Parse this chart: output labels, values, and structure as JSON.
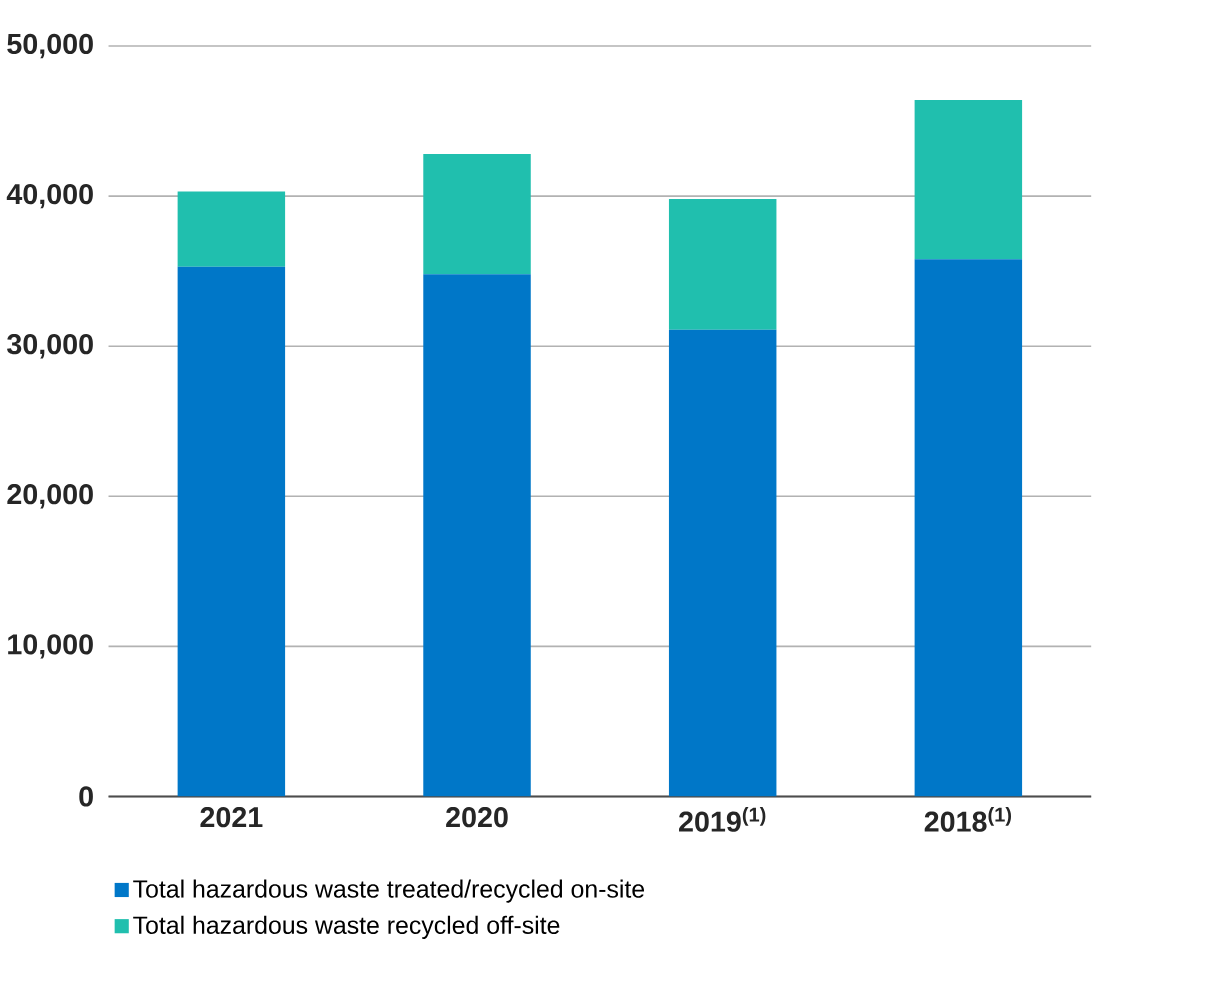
{
  "chart_data": {
    "type": "bar",
    "stacked": true,
    "categories": [
      "2021",
      "2020",
      "2019$^{(1)}$",
      "2018$^{(1)}$"
    ],
    "series": [
      {
        "name": "Total hazardous waste treated/recycled on-site",
        "color": "#0077c8",
        "values": [
          35300,
          34800,
          31100,
          35800
        ]
      },
      {
        "name": "Total hazardous waste recycled off-site",
        "color": "#20bfae",
        "values": [
          5000,
          8000,
          8700,
          10600
        ]
      }
    ],
    "ylim": [
      0,
      50000
    ],
    "yticks": [
      0,
      {
        "value": 10000,
        "label": "10,000"
      },
      {
        "value": 20000,
        "label": "20,000"
      },
      {
        "value": 30000,
        "label": "30,000"
      },
      {
        "value": 40000,
        "label": "40,000"
      },
      {
        "value": 50000,
        "label": "50,000"
      }
    ],
    "grid": "y",
    "legend": "bottom"
  }
}
